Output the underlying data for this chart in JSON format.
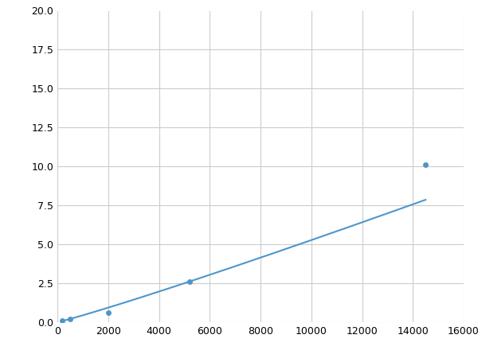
{
  "x_data": [
    200,
    500,
    2000,
    5200,
    14500
  ],
  "y_data": [
    0.1,
    0.2,
    0.6,
    2.6,
    10.1
  ],
  "xlim": [
    0,
    16000
  ],
  "ylim": [
    0,
    20
  ],
  "xticks": [
    0,
    2000,
    4000,
    6000,
    8000,
    10000,
    12000,
    14000,
    16000
  ],
  "yticks": [
    0.0,
    2.5,
    5.0,
    7.5,
    10.0,
    12.5,
    15.0,
    17.5,
    20.0
  ],
  "line_color": "#4d96c9",
  "marker_color": "#4d96c9",
  "grid_color": "#cccccc",
  "background_color": "#ffffff",
  "marker_size": 5,
  "line_width": 1.5,
  "figsize": [
    6.0,
    4.5
  ],
  "dpi": 100
}
